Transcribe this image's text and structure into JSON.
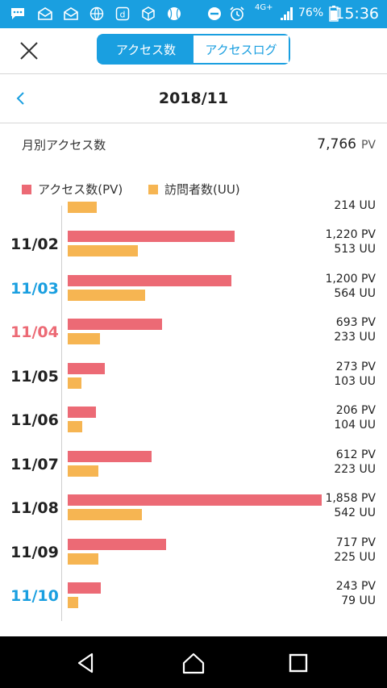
{
  "status_bar": {
    "network": "4G+",
    "battery": "76%",
    "time": "15:36"
  },
  "header": {
    "tabs": [
      {
        "label": "アクセス数",
        "active": true
      },
      {
        "label": "アクセスログ",
        "active": false
      }
    ]
  },
  "month_nav": {
    "title": "2018/11"
  },
  "summary": {
    "label": "月別アクセス数",
    "value": "7,766",
    "unit": "PV"
  },
  "legend": [
    {
      "label": "アクセス数(PV)",
      "color": "#ec6a75"
    },
    {
      "label": "訪問者数(UU)",
      "color": "#f6b552"
    }
  ],
  "colors": {
    "accent": "#1a9fe0",
    "pv": "#ec6a75",
    "uu": "#f6b552",
    "weekday": "#222222",
    "saturday": "#1a9fe0",
    "holiday": "#ec6a75"
  },
  "chart_data": {
    "type": "bar",
    "orientation": "horizontal",
    "max_value": 1858,
    "partial_top_row": {
      "uu": 214,
      "uu_label": "214 UU"
    },
    "categories": [
      "11/02",
      "11/03",
      "11/04",
      "11/05",
      "11/06",
      "11/07",
      "11/08",
      "11/09",
      "11/10"
    ],
    "day_colors": [
      "weekday",
      "saturday",
      "holiday",
      "weekday",
      "weekday",
      "weekday",
      "weekday",
      "weekday",
      "saturday"
    ],
    "series": [
      {
        "name": "アクセス数(PV)",
        "values": [
          1220,
          1200,
          693,
          273,
          206,
          612,
          1858,
          717,
          243
        ],
        "labels": [
          "1,220 PV",
          "1,200 PV",
          "693 PV",
          "273 PV",
          "206 PV",
          "612 PV",
          "1,858 PV",
          "717 PV",
          "243 PV"
        ]
      },
      {
        "name": "訪問者数(UU)",
        "values": [
          513,
          564,
          233,
          103,
          104,
          223,
          542,
          225,
          79
        ],
        "labels": [
          "513 UU",
          "564 UU",
          "233 UU",
          "103 UU",
          "104 UU",
          "223 UU",
          "542 UU",
          "225 UU",
          "79 UU"
        ]
      }
    ]
  }
}
